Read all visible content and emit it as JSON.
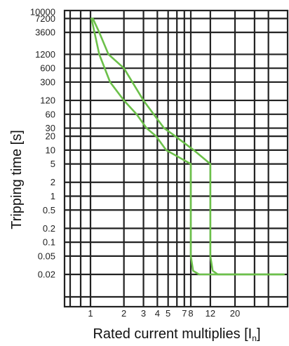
{
  "chart_data": {
    "type": "line",
    "title": "",
    "xlabel": "Rated current multiplies [I",
    "xlabel_sub": "n",
    "xlabel_end": "]",
    "ylabel": "Tripping time [s]",
    "x_scale": "log",
    "y_scale": "log",
    "xlim": [
      1,
      55
    ],
    "ylim": [
      0.02,
      10000
    ],
    "x_ticks": [
      {
        "v": 1,
        "label": "1"
      },
      {
        "v": 2,
        "label": "2"
      },
      {
        "v": 3,
        "label": "3"
      },
      {
        "v": 4,
        "label": "4"
      },
      {
        "v": 5,
        "label": "5"
      },
      {
        "v": 7,
        "label": "7"
      },
      {
        "v": 8,
        "label": "8"
      },
      {
        "v": 12,
        "label": "12"
      },
      {
        "v": 20,
        "label": "20"
      }
    ],
    "y_ticks": [
      {
        "v": 10000,
        "label": "10000"
      },
      {
        "v": 7200,
        "label": "7200"
      },
      {
        "v": 3600,
        "label": "3600"
      },
      {
        "v": 1200,
        "label": "1200"
      },
      {
        "v": 600,
        "label": "600"
      },
      {
        "v": 300,
        "label": "300"
      },
      {
        "v": 120,
        "label": "120"
      },
      {
        "v": 60,
        "label": "60"
      },
      {
        "v": 30,
        "label": "30"
      },
      {
        "v": 20,
        "label": "20"
      },
      {
        "v": 10,
        "label": "10"
      },
      {
        "v": 5,
        "label": "5"
      },
      {
        "v": 2,
        "label": "2"
      },
      {
        "v": 1,
        "label": "1"
      },
      {
        "v": 0.5,
        "label": "0.5"
      },
      {
        "v": 0.2,
        "label": "0.2"
      },
      {
        "v": 0.1,
        "label": "0.1"
      },
      {
        "v": 0.05,
        "label": "0.05"
      },
      {
        "v": 0.02,
        "label": "0.02"
      }
    ],
    "grid": true,
    "series": [
      {
        "color": "#6cc04a",
        "points": [
          [
            1.05,
            7200
          ],
          [
            1.2,
            3600
          ],
          [
            1.45,
            1200
          ],
          [
            2,
            600
          ],
          [
            3,
            120
          ],
          [
            4.6,
            30
          ],
          [
            5.8,
            20
          ],
          [
            8.5,
            10
          ],
          [
            12,
            5
          ],
          [
            12,
            0.05
          ],
          [
            12.6,
            0.024
          ],
          [
            14,
            0.02
          ],
          [
            55,
            0.02
          ]
        ]
      },
      {
        "color": "#6cc04a",
        "points": [
          [
            1.02,
            7200
          ],
          [
            1.2,
            1200
          ],
          [
            1.5,
            300
          ],
          [
            2,
            120
          ],
          [
            2.6,
            60
          ],
          [
            3.2,
            30
          ],
          [
            3.9,
            20
          ],
          [
            4.8,
            10
          ],
          [
            8,
            5
          ],
          [
            8,
            0.05
          ],
          [
            8.4,
            0.024
          ],
          [
            9.5,
            0.02
          ],
          [
            55,
            0.02
          ]
        ]
      }
    ]
  }
}
